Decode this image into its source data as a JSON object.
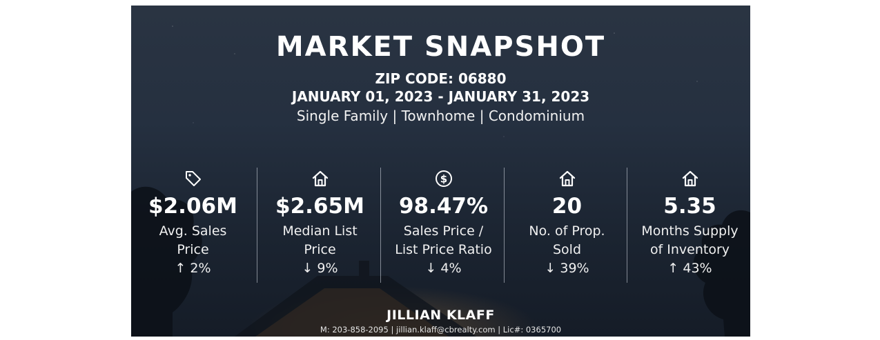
{
  "header": {
    "title": "MARKET SNAPSHOT",
    "zip": "ZIP CODE: 06880",
    "date_range": "JANUARY 01, 2023 - JANUARY 31, 2023",
    "property_types": "Single Family | Townhome | Condominium"
  },
  "stats": [
    {
      "icon": "price-tag-icon",
      "value": "$2.06M",
      "label_line1": "Avg. Sales",
      "label_line2": "Price",
      "change": "↑ 2%"
    },
    {
      "icon": "house-icon",
      "value": "$2.65M",
      "label_line1": "Median List",
      "label_line2": "Price",
      "change": "↓ 9%"
    },
    {
      "icon": "dollar-circle-icon",
      "value": "98.47%",
      "label_line1": "Sales Price /",
      "label_line2": "List Price Ratio",
      "change": "↓ 4%"
    },
    {
      "icon": "house-icon",
      "value": "20",
      "label_line1": "No. of Prop.",
      "label_line2": "Sold",
      "change": "↓ 39%"
    },
    {
      "icon": "house-icon",
      "value": "5.35",
      "label_line1": "Months Supply",
      "label_line2": "of Inventory",
      "change": "↑ 43%"
    }
  ],
  "agent": {
    "name": "JILLIAN KLAFF",
    "contact": "M: 203-858-2095 | jillian.klaff@cbrealty.com | Lic#: 0365700"
  }
}
